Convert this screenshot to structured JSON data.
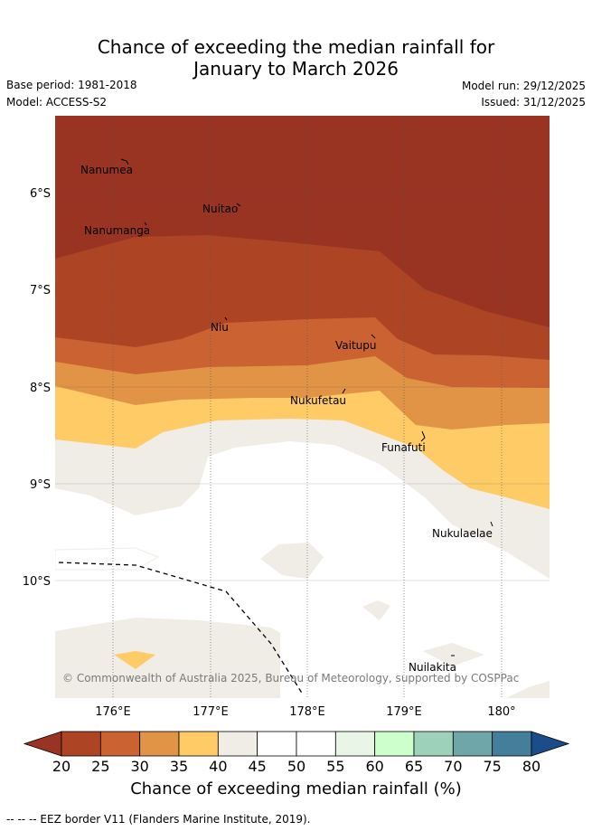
{
  "title": {
    "line1": "Chance of exceeding the median rainfall for",
    "line2": "January to March 2026"
  },
  "meta": {
    "base_period": "Base period: 1981-2018",
    "model": "Model: ACCESS-S2",
    "model_run": "Model run: 29/12/2025",
    "issued": "Issued: 31/12/2025"
  },
  "map": {
    "lat_labels": [
      "6°S",
      "7°S",
      "8°S",
      "9°S",
      "10°S"
    ],
    "lon_labels": [
      "176°E",
      "177°E",
      "178°E",
      "179°E",
      "180°"
    ],
    "islands": [
      "Nanumea",
      "Nuitao",
      "Nanumanga",
      "Niu",
      "Vaitupu",
      "Nukufetau",
      "Funafuti",
      "Nukulaelae",
      "Nuilakita"
    ],
    "copyright": "© Commonwealth of Australia 2025, Bureau of Meteorology, supported by COSPPac",
    "colors": {
      "c20_25": "#ad4525",
      "c25_30": "#cb6232",
      "c30_35": "#e19446",
      "c35_40": "#fecb66",
      "c40_45": "#f0ece6",
      "c45_50": "#ffffff",
      "below20": "#983421"
    }
  },
  "colorbar": {
    "ticks": [
      "20",
      "25",
      "30",
      "35",
      "40",
      "45",
      "50",
      "55",
      "60",
      "65",
      "70",
      "75",
      "80"
    ],
    "colors": [
      "#ad4525",
      "#cb6232",
      "#e19446",
      "#fecb66",
      "#f0ece6",
      "#ffffff",
      "#ffffff",
      "#e9f5e6",
      "#ccffcc",
      "#9ed1b9",
      "#6fa6a8",
      "#437e9a"
    ],
    "under_color": "#983421",
    "over_color": "#1a4d8a",
    "label": "Chance of exceeding median rainfall (%)"
  },
  "footer": "--  --  -- EEZ border V11 (Flanders Marine Institute, 2019)."
}
